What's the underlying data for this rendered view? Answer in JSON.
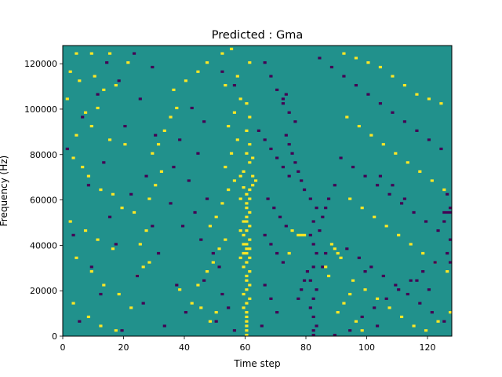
{
  "chart_data": {
    "type": "heatmap",
    "title": "Predicted : Gma",
    "xlabel": "Time step",
    "ylabel": "Frequency (Hz)",
    "xlim": [
      0,
      128
    ],
    "ylim": [
      0,
      128000
    ],
    "x_ticks": [
      0,
      20,
      40,
      60,
      80,
      100,
      120
    ],
    "y_ticks": [
      0,
      20000,
      40000,
      60000,
      80000,
      100000,
      120000
    ],
    "n_time_steps": 128,
    "n_freq_bins": 128,
    "cell_values_legend": {
      "low": -1,
      "background": 0,
      "high": 1
    },
    "colors": {
      "low": "#440154",
      "background": "#21918c",
      "high": "#fde725"
    },
    "grid": false,
    "cells": [
      [
        60,
        0,
        1
      ],
      [
        60,
        2,
        1
      ],
      [
        60,
        4,
        1
      ],
      [
        60,
        6,
        1
      ],
      [
        60,
        8,
        1
      ],
      [
        60,
        10,
        1
      ],
      [
        59,
        12,
        1
      ],
      [
        60,
        14,
        1
      ],
      [
        61,
        16,
        1
      ],
      [
        59,
        18,
        1
      ],
      [
        60,
        20,
        1
      ],
      [
        61,
        22,
        1
      ],
      [
        60,
        24,
        1
      ],
      [
        60,
        26,
        1
      ],
      [
        61,
        28,
        1
      ],
      [
        59,
        30,
        1
      ],
      [
        60,
        32,
        1
      ],
      [
        61,
        34,
        1
      ],
      [
        60,
        36,
        1
      ],
      [
        61,
        38,
        1
      ],
      [
        60,
        40,
        1
      ],
      [
        61,
        42,
        1
      ],
      [
        59,
        44,
        1
      ],
      [
        60,
        46,
        1
      ],
      [
        61,
        48,
        1
      ],
      [
        60,
        50,
        1
      ],
      [
        60,
        52,
        1
      ],
      [
        61,
        54,
        1
      ],
      [
        60,
        56,
        1
      ],
      [
        60,
        58,
        1
      ],
      [
        61,
        60,
        1
      ],
      [
        60,
        62,
        1
      ],
      [
        61,
        64,
        1
      ],
      [
        62,
        66,
        1
      ],
      [
        63,
        68,
        1
      ],
      [
        62,
        70,
        1
      ],
      [
        58,
        70,
        1
      ],
      [
        59,
        72,
        1
      ],
      [
        61,
        76,
        1
      ],
      [
        62,
        78,
        1
      ],
      [
        60,
        80,
        1
      ],
      [
        61,
        84,
        1
      ],
      [
        60,
        90,
        1
      ],
      [
        61,
        96,
        1
      ],
      [
        60,
        102,
        1
      ],
      [
        61,
        120,
        1
      ],
      [
        59,
        65,
        1
      ],
      [
        58,
        60,
        1
      ],
      [
        60,
        38,
        1
      ],
      [
        59,
        36,
        1
      ],
      [
        58,
        34,
        1
      ],
      [
        59,
        40,
        1
      ],
      [
        58,
        46,
        1
      ],
      [
        59,
        50,
        1
      ],
      [
        77,
        44,
        1
      ],
      [
        78,
        44,
        1
      ],
      [
        79,
        44,
        1
      ],
      [
        74,
        36,
        1
      ],
      [
        75,
        46,
        1
      ],
      [
        82,
        0,
        -1
      ],
      [
        82,
        2,
        -1
      ],
      [
        83,
        4,
        -1
      ],
      [
        82,
        8,
        -1
      ],
      [
        81,
        12,
        -1
      ],
      [
        82,
        16,
        -1
      ],
      [
        83,
        20,
        -1
      ],
      [
        81,
        24,
        -1
      ],
      [
        82,
        30,
        -1
      ],
      [
        83,
        36,
        -1
      ],
      [
        82,
        40,
        -1
      ],
      [
        81,
        44,
        -1
      ],
      [
        82,
        50,
        -1
      ],
      [
        83,
        56,
        -1
      ],
      [
        81,
        60,
        -1
      ],
      [
        79,
        64,
        -1
      ],
      [
        78,
        68,
        -1
      ],
      [
        77,
        72,
        -1
      ],
      [
        76,
        76,
        -1
      ],
      [
        75,
        80,
        -1
      ],
      [
        74,
        84,
        -1
      ],
      [
        73,
        88,
        -1
      ],
      [
        72,
        104,
        -1
      ],
      [
        73,
        106,
        -1
      ],
      [
        78,
        20,
        -1
      ],
      [
        77,
        16,
        -1
      ],
      [
        79,
        24,
        -1
      ],
      [
        80,
        28,
        -1
      ],
      [
        85,
        30,
        -1
      ],
      [
        86,
        36,
        -1
      ],
      [
        84,
        46,
        -1
      ],
      [
        85,
        52,
        -1
      ],
      [
        86,
        56,
        -1
      ],
      [
        87,
        60,
        -1
      ],
      [
        89,
        66,
        -1
      ],
      [
        4,
        124,
        1
      ],
      [
        9,
        124,
        1
      ],
      [
        15,
        124,
        1
      ],
      [
        21,
        120,
        1
      ],
      [
        2,
        116,
        1
      ],
      [
        5,
        112,
        1
      ],
      [
        10,
        114,
        1
      ],
      [
        13,
        108,
        1
      ],
      [
        17,
        110,
        1
      ],
      [
        1,
        104,
        1
      ],
      [
        7,
        98,
        1
      ],
      [
        11,
        100,
        1
      ],
      [
        4,
        88,
        1
      ],
      [
        9,
        92,
        1
      ],
      [
        15,
        86,
        1
      ],
      [
        20,
        84,
        1
      ],
      [
        3,
        78,
        1
      ],
      [
        6,
        74,
        1
      ],
      [
        8,
        70,
        1
      ],
      [
        12,
        64,
        1
      ],
      [
        16,
        62,
        1
      ],
      [
        19,
        56,
        1
      ],
      [
        2,
        50,
        1
      ],
      [
        7,
        46,
        1
      ],
      [
        11,
        42,
        1
      ],
      [
        16,
        38,
        1
      ],
      [
        4,
        34,
        1
      ],
      [
        9,
        28,
        1
      ],
      [
        13,
        22,
        1
      ],
      [
        18,
        18,
        1
      ],
      [
        3,
        14,
        1
      ],
      [
        8,
        8,
        1
      ],
      [
        12,
        4,
        1
      ],
      [
        17,
        2,
        1
      ],
      [
        22,
        12,
        1
      ],
      [
        24,
        26,
        1
      ],
      [
        26,
        30,
        1
      ],
      [
        28,
        32,
        1
      ],
      [
        25,
        40,
        1
      ],
      [
        27,
        46,
        1
      ],
      [
        23,
        54,
        1
      ],
      [
        28,
        60,
        1
      ],
      [
        30,
        66,
        1
      ],
      [
        32,
        72,
        1
      ],
      [
        29,
        80,
        1
      ],
      [
        31,
        84,
        1
      ],
      [
        33,
        90,
        1
      ],
      [
        35,
        96,
        1
      ],
      [
        37,
        100,
        1
      ],
      [
        36,
        108,
        1
      ],
      [
        40,
        112,
        1
      ],
      [
        44,
        116,
        1
      ],
      [
        47,
        120,
        1
      ],
      [
        52,
        124,
        1
      ],
      [
        55,
        126,
        1
      ],
      [
        38,
        20,
        1
      ],
      [
        42,
        14,
        1
      ],
      [
        45,
        12,
        1
      ],
      [
        48,
        6,
        1
      ],
      [
        50,
        10,
        1
      ],
      [
        44,
        22,
        1
      ],
      [
        47,
        28,
        1
      ],
      [
        49,
        32,
        1
      ],
      [
        51,
        38,
        1
      ],
      [
        53,
        42,
        1
      ],
      [
        48,
        48,
        1
      ],
      [
        50,
        52,
        1
      ],
      [
        52,
        58,
        1
      ],
      [
        54,
        64,
        1
      ],
      [
        56,
        68,
        1
      ],
      [
        53,
        74,
        1
      ],
      [
        55,
        80,
        1
      ],
      [
        57,
        86,
        1
      ],
      [
        54,
        92,
        1
      ],
      [
        56,
        98,
        1
      ],
      [
        58,
        104,
        1
      ],
      [
        53,
        110,
        1
      ],
      [
        57,
        114,
        1
      ],
      [
        92,
        124,
        1
      ],
      [
        96,
        122,
        1
      ],
      [
        100,
        120,
        1
      ],
      [
        104,
        118,
        1
      ],
      [
        108,
        114,
        1
      ],
      [
        112,
        110,
        1
      ],
      [
        116,
        106,
        1
      ],
      [
        120,
        104,
        1
      ],
      [
        124,
        102,
        1
      ],
      [
        93,
        96,
        1
      ],
      [
        97,
        92,
        1
      ],
      [
        101,
        88,
        1
      ],
      [
        105,
        84,
        1
      ],
      [
        109,
        80,
        1
      ],
      [
        113,
        76,
        1
      ],
      [
        117,
        72,
        1
      ],
      [
        121,
        68,
        1
      ],
      [
        125,
        64,
        1
      ],
      [
        94,
        60,
        1
      ],
      [
        98,
        56,
        1
      ],
      [
        102,
        52,
        1
      ],
      [
        106,
        48,
        1
      ],
      [
        110,
        44,
        1
      ],
      [
        114,
        40,
        1
      ],
      [
        118,
        36,
        1
      ],
      [
        122,
        32,
        1
      ],
      [
        126,
        28,
        1
      ],
      [
        95,
        24,
        1
      ],
      [
        99,
        20,
        1
      ],
      [
        103,
        16,
        1
      ],
      [
        107,
        12,
        1
      ],
      [
        111,
        8,
        1
      ],
      [
        115,
        4,
        1
      ],
      [
        119,
        2,
        1
      ],
      [
        123,
        6,
        1
      ],
      [
        127,
        10,
        1
      ],
      [
        88,
        40,
        1
      ],
      [
        89,
        38,
        1
      ],
      [
        90,
        36,
        1
      ],
      [
        91,
        34,
        1
      ],
      [
        86,
        30,
        1
      ],
      [
        87,
        26,
        1
      ],
      [
        90,
        10,
        1
      ],
      [
        92,
        14,
        1
      ],
      [
        94,
        18,
        1
      ],
      [
        96,
        6,
        1
      ],
      [
        98,
        2,
        1
      ],
      [
        23,
        124,
        -1
      ],
      [
        14,
        120,
        -1
      ],
      [
        29,
        118,
        -1
      ],
      [
        18,
        112,
        -1
      ],
      [
        11,
        106,
        -1
      ],
      [
        25,
        104,
        -1
      ],
      [
        6,
        96,
        -1
      ],
      [
        20,
        92,
        -1
      ],
      [
        30,
        88,
        -1
      ],
      [
        1,
        82,
        -1
      ],
      [
        13,
        76,
        -1
      ],
      [
        27,
        70,
        -1
      ],
      [
        8,
        66,
        -1
      ],
      [
        22,
        62,
        -1
      ],
      [
        35,
        58,
        -1
      ],
      [
        15,
        52,
        -1
      ],
      [
        29,
        48,
        -1
      ],
      [
        3,
        44,
        -1
      ],
      [
        17,
        40,
        -1
      ],
      [
        31,
        36,
        -1
      ],
      [
        9,
        30,
        -1
      ],
      [
        24,
        26,
        -1
      ],
      [
        37,
        22,
        -1
      ],
      [
        12,
        18,
        -1
      ],
      [
        26,
        14,
        -1
      ],
      [
        40,
        10,
        -1
      ],
      [
        5,
        6,
        -1
      ],
      [
        19,
        2,
        -1
      ],
      [
        33,
        4,
        -1
      ],
      [
        42,
        100,
        -1
      ],
      [
        46,
        94,
        -1
      ],
      [
        38,
        86,
        -1
      ],
      [
        44,
        80,
        -1
      ],
      [
        36,
        74,
        -1
      ],
      [
        41,
        68,
        -1
      ],
      [
        47,
        60,
        -1
      ],
      [
        43,
        54,
        -1
      ],
      [
        39,
        48,
        -1
      ],
      [
        45,
        42,
        -1
      ],
      [
        49,
        36,
        -1
      ],
      [
        51,
        30,
        -1
      ],
      [
        46,
        24,
        -1
      ],
      [
        52,
        18,
        -1
      ],
      [
        54,
        12,
        -1
      ],
      [
        50,
        6,
        -1
      ],
      [
        56,
        2,
        -1
      ],
      [
        52,
        116,
        -1
      ],
      [
        56,
        110,
        -1
      ],
      [
        84,
        122,
        -1
      ],
      [
        88,
        118,
        -1
      ],
      [
        92,
        114,
        -1
      ],
      [
        96,
        110,
        -1
      ],
      [
        100,
        106,
        -1
      ],
      [
        104,
        102,
        -1
      ],
      [
        108,
        98,
        -1
      ],
      [
        112,
        94,
        -1
      ],
      [
        116,
        90,
        -1
      ],
      [
        120,
        86,
        -1
      ],
      [
        124,
        82,
        -1
      ],
      [
        91,
        78,
        -1
      ],
      [
        95,
        74,
        -1
      ],
      [
        99,
        70,
        -1
      ],
      [
        103,
        66,
        -1
      ],
      [
        107,
        62,
        -1
      ],
      [
        111,
        58,
        -1
      ],
      [
        115,
        54,
        -1
      ],
      [
        119,
        50,
        -1
      ],
      [
        123,
        46,
        -1
      ],
      [
        127,
        42,
        -1
      ],
      [
        93,
        38,
        -1
      ],
      [
        97,
        34,
        -1
      ],
      [
        101,
        30,
        -1
      ],
      [
        105,
        26,
        -1
      ],
      [
        109,
        22,
        -1
      ],
      [
        113,
        18,
        -1
      ],
      [
        117,
        14,
        -1
      ],
      [
        121,
        10,
        -1
      ],
      [
        125,
        6,
        -1
      ],
      [
        94,
        2,
        -1
      ],
      [
        98,
        8,
        -1
      ],
      [
        102,
        12,
        -1
      ],
      [
        106,
        16,
        -1
      ],
      [
        110,
        20,
        -1
      ],
      [
        114,
        24,
        -1
      ],
      [
        118,
        28,
        -1
      ],
      [
        122,
        32,
        -1
      ],
      [
        126,
        36,
        -1
      ],
      [
        89,
        0,
        -1
      ],
      [
        103,
        4,
        -1
      ],
      [
        99,
        28,
        -1
      ],
      [
        64,
        90,
        -1
      ],
      [
        66,
        86,
        -1
      ],
      [
        68,
        82,
        -1
      ],
      [
        70,
        78,
        -1
      ],
      [
        72,
        74,
        -1
      ],
      [
        74,
        70,
        -1
      ],
      [
        66,
        44,
        -1
      ],
      [
        68,
        40,
        -1
      ],
      [
        70,
        36,
        -1
      ],
      [
        72,
        32,
        -1
      ],
      [
        66,
        22,
        -1
      ],
      [
        68,
        16,
        -1
      ],
      [
        70,
        10,
        -1
      ],
      [
        65,
        4,
        -1
      ],
      [
        67,
        60,
        -1
      ],
      [
        69,
        56,
        -1
      ],
      [
        71,
        52,
        -1
      ],
      [
        73,
        48,
        -1
      ],
      [
        66,
        120,
        -1
      ],
      [
        68,
        114,
        -1
      ],
      [
        70,
        108,
        -1
      ],
      [
        72,
        102,
        -1
      ],
      [
        74,
        98,
        -1
      ],
      [
        76,
        94,
        -1
      ],
      [
        127,
        56,
        -1
      ],
      [
        126,
        62,
        -1
      ],
      [
        125,
        50,
        -1
      ],
      [
        127,
        54,
        -1
      ],
      [
        126,
        54,
        -1
      ],
      [
        125,
        54,
        -1
      ],
      [
        127,
        32,
        -1
      ],
      [
        120,
        20,
        -1
      ],
      [
        116,
        24,
        -1
      ],
      [
        112,
        60,
        -1
      ],
      [
        108,
        66,
        -1
      ],
      [
        104,
        70,
        -1
      ]
    ]
  }
}
